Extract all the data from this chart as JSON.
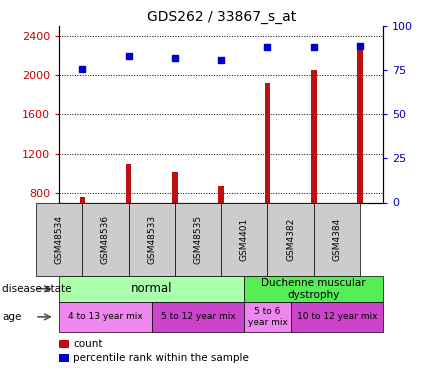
{
  "title": "GDS262 / 33867_s_at",
  "samples": [
    "GSM48534",
    "GSM48536",
    "GSM48533",
    "GSM48535",
    "GSM4401",
    "GSM4382",
    "GSM4384"
  ],
  "count_values": [
    760,
    1090,
    1010,
    870,
    1920,
    2050,
    2330
  ],
  "percentile_values": [
    76,
    83,
    82,
    81,
    88,
    88,
    89
  ],
  "bar_color": "#bb1111",
  "scatter_color": "#0000cc",
  "ylim_left": [
    700,
    2500
  ],
  "ylim_right": [
    0,
    100
  ],
  "yticks_left": [
    800,
    1200,
    1600,
    2000,
    2400
  ],
  "yticks_right": [
    0,
    25,
    50,
    75,
    100
  ],
  "grid_y": [
    800,
    1200,
    1600,
    2000,
    2400
  ],
  "normal_color": "#aaffaa",
  "duchenne_color": "#55ee55",
  "age_color1": "#ee88ee",
  "age_color2": "#cc44cc",
  "sample_box_color": "#cccccc",
  "bar_width": 0.12,
  "scatter_size": 22,
  "axis_color_left": "#cc0000",
  "axis_color_right": "#0000bb"
}
